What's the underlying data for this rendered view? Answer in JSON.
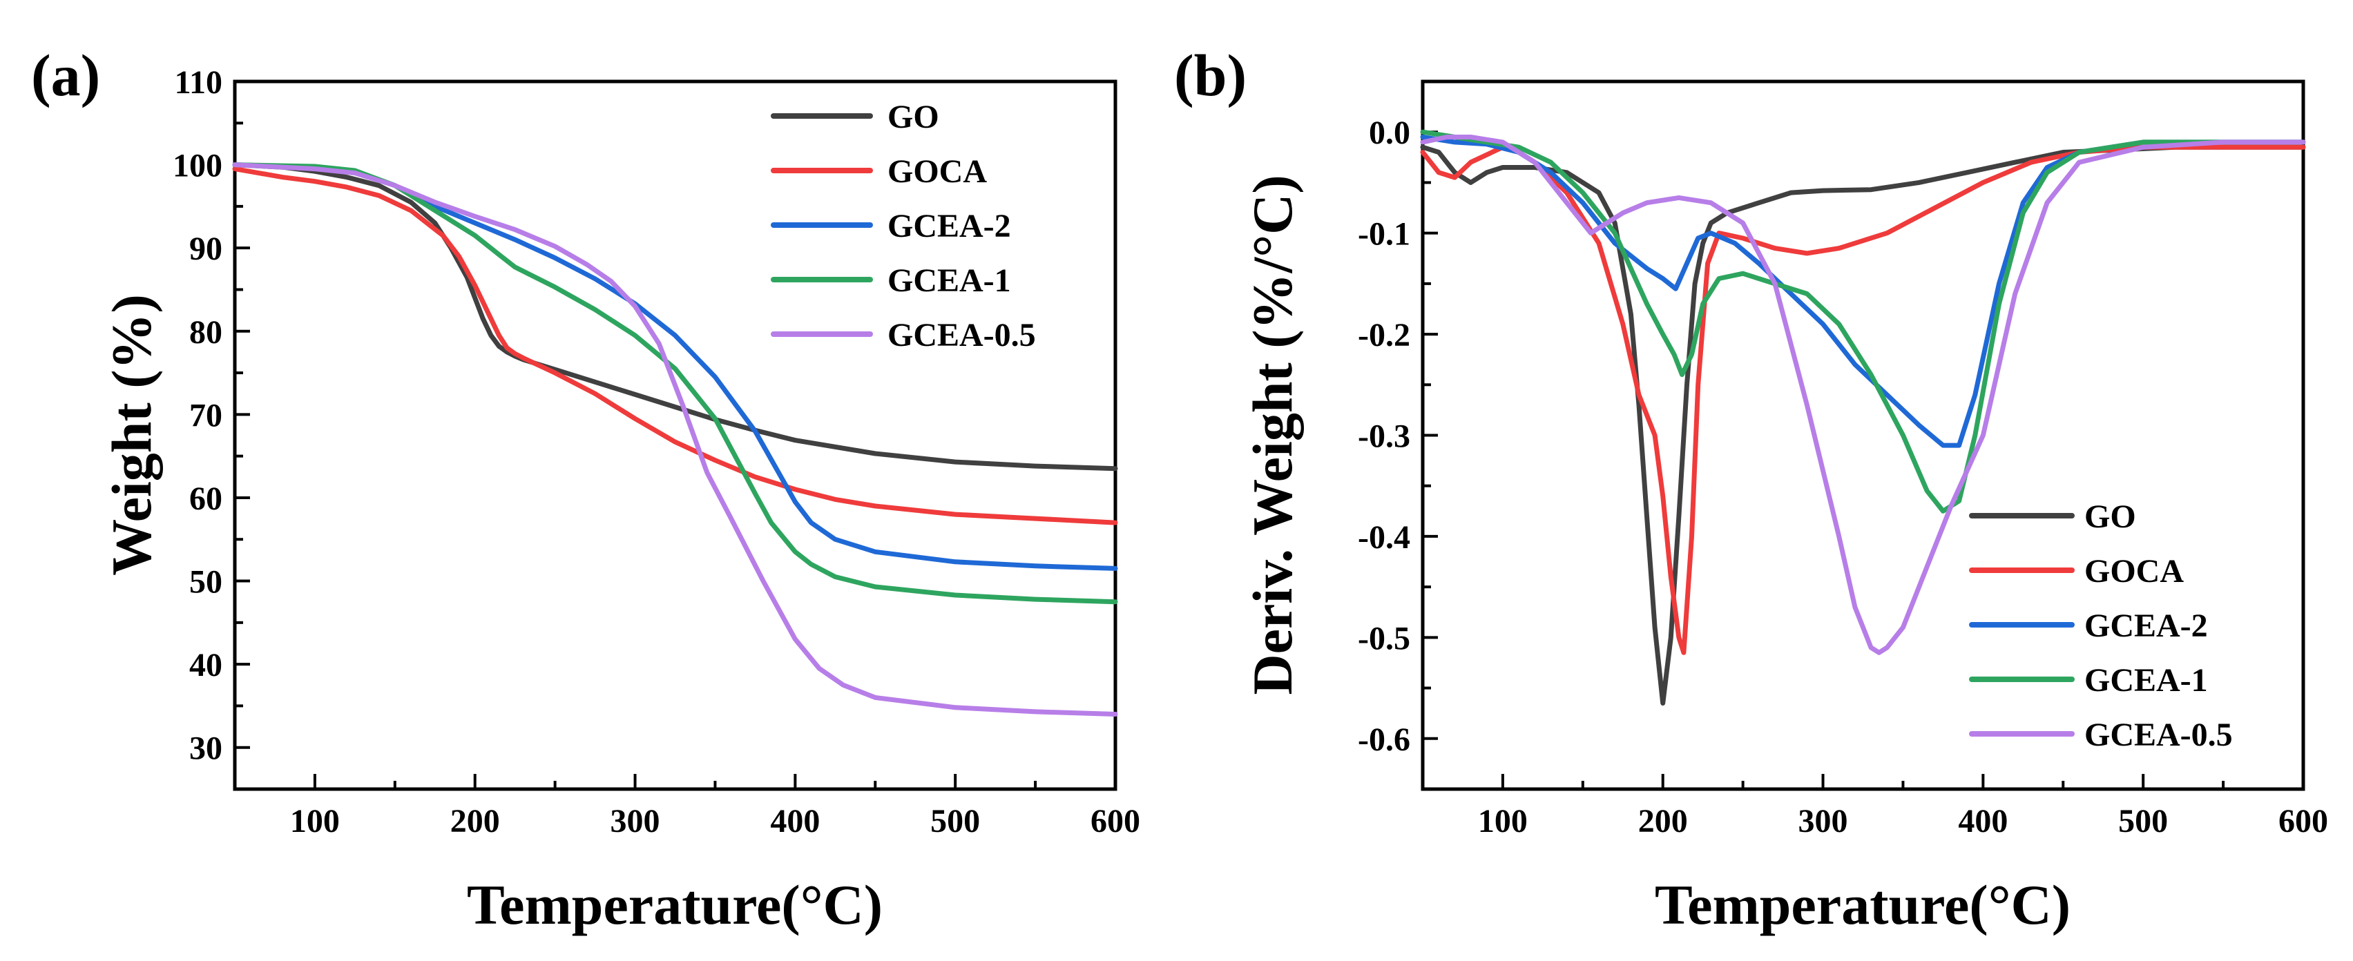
{
  "chart_data": [
    {
      "panel": "(a)",
      "type": "line",
      "xlabel": "Temperature(°C)",
      "ylabel": "Weight (%)",
      "xlim": [
        50,
        600
      ],
      "ylim": [
        25,
        110
      ],
      "xticks": [
        100,
        200,
        300,
        400,
        500,
        600
      ],
      "yticks": [
        30,
        40,
        50,
        60,
        70,
        80,
        90,
        100,
        110
      ],
      "legend_position": "top-right",
      "series": [
        {
          "name": "GO",
          "color": "#404040",
          "x": [
            50,
            80,
            100,
            120,
            140,
            160,
            175,
            185,
            195,
            200,
            205,
            210,
            215,
            220,
            225,
            230,
            250,
            275,
            300,
            325,
            350,
            375,
            400,
            450,
            500,
            550,
            600
          ],
          "y": [
            100,
            99.7,
            99.2,
            98.5,
            97.5,
            95.5,
            93,
            90,
            86.5,
            84,
            81.5,
            79.5,
            78.2,
            77.5,
            77,
            76.6,
            75.4,
            73.9,
            72.4,
            70.9,
            69.4,
            68.1,
            66.9,
            65.3,
            64.3,
            63.8,
            63.5
          ]
        },
        {
          "name": "GOCA",
          "color": "#ef3b3b",
          "x": [
            50,
            80,
            100,
            120,
            140,
            160,
            180,
            190,
            200,
            210,
            215,
            220,
            225,
            230,
            250,
            275,
            300,
            325,
            350,
            375,
            400,
            425,
            450,
            500,
            550,
            600
          ],
          "y": [
            99.5,
            98.5,
            98,
            97.3,
            96.3,
            94.5,
            91.5,
            89,
            85.5,
            81.5,
            79.5,
            78,
            77.3,
            76.8,
            75,
            72.5,
            69.5,
            66.7,
            64.5,
            62.5,
            61,
            59.8,
            59,
            58,
            57.5,
            57
          ]
        },
        {
          "name": "GCEA-2",
          "color": "#1f69d6",
          "x": [
            50,
            100,
            125,
            150,
            175,
            200,
            225,
            250,
            275,
            300,
            325,
            350,
            375,
            400,
            410,
            425,
            450,
            500,
            550,
            600
          ],
          "y": [
            100,
            99.7,
            99.2,
            97.5,
            95,
            93,
            91,
            88.8,
            86.3,
            83.3,
            79.5,
            74.5,
            68,
            59.5,
            57,
            55,
            53.5,
            52.3,
            51.8,
            51.5
          ]
        },
        {
          "name": "GCEA-1",
          "color": "#2ea55f",
          "x": [
            50,
            100,
            125,
            150,
            175,
            200,
            215,
            225,
            250,
            275,
            300,
            325,
            350,
            375,
            385,
            400,
            410,
            425,
            450,
            500,
            550,
            600
          ],
          "y": [
            100,
            99.8,
            99.3,
            97.5,
            94.5,
            91.5,
            89.2,
            87.7,
            85.3,
            82.6,
            79.5,
            75.5,
            69.5,
            60.5,
            57,
            53.5,
            52,
            50.5,
            49.3,
            48.3,
            47.8,
            47.5
          ]
        },
        {
          "name": "GCEA-0.5",
          "color": "#b77ee8",
          "x": [
            50,
            100,
            125,
            150,
            175,
            200,
            225,
            250,
            270,
            285,
            300,
            315,
            330,
            345,
            360,
            380,
            400,
            415,
            430,
            450,
            500,
            550,
            600
          ],
          "y": [
            100,
            99.5,
            99,
            97.5,
            95.5,
            93.8,
            92.2,
            90.2,
            88,
            86,
            83,
            78.5,
            71,
            63,
            57.5,
            50,
            43,
            39.5,
            37.5,
            36,
            34.8,
            34.3,
            34
          ]
        }
      ]
    },
    {
      "panel": "(b)",
      "type": "line",
      "xlabel": "Temperature(°C)",
      "ylabel": "Deriv. Weight (%/°C)",
      "xlim": [
        50,
        600
      ],
      "ylim": [
        -0.65,
        0.05
      ],
      "xticks": [
        100,
        200,
        300,
        400,
        500,
        600
      ],
      "yticks": [
        "0.0",
        "-0.1",
        "-0.2",
        "-0.3",
        "-0.4",
        "-0.5",
        "-0.6"
      ],
      "legend_position": "bottom-right",
      "series": [
        {
          "name": "GO",
          "color": "#404040",
          "x": [
            50,
            60,
            70,
            80,
            90,
            100,
            120,
            140,
            160,
            170,
            180,
            185,
            190,
            195,
            200,
            205,
            210,
            215,
            220,
            225,
            230,
            240,
            260,
            280,
            300,
            330,
            360,
            390,
            420,
            450,
            480,
            520,
            560,
            600
          ],
          "y": [
            -0.015,
            -0.02,
            -0.04,
            -0.05,
            -0.04,
            -0.035,
            -0.035,
            -0.04,
            -0.06,
            -0.09,
            -0.18,
            -0.27,
            -0.38,
            -0.49,
            -0.565,
            -0.5,
            -0.38,
            -0.25,
            -0.15,
            -0.11,
            -0.09,
            -0.08,
            -0.07,
            -0.06,
            -0.058,
            -0.057,
            -0.05,
            -0.04,
            -0.03,
            -0.02,
            -0.018,
            -0.015,
            -0.015,
            -0.015
          ]
        },
        {
          "name": "GOCA",
          "color": "#ef3b3b",
          "x": [
            50,
            60,
            70,
            80,
            100,
            110,
            120,
            140,
            160,
            175,
            185,
            195,
            200,
            205,
            210,
            213,
            218,
            222,
            228,
            235,
            250,
            270,
            290,
            310,
            340,
            370,
            400,
            430,
            460,
            500,
            550,
            600
          ],
          "y": [
            -0.02,
            -0.04,
            -0.045,
            -0.03,
            -0.015,
            -0.02,
            -0.03,
            -0.06,
            -0.11,
            -0.19,
            -0.26,
            -0.3,
            -0.36,
            -0.44,
            -0.5,
            -0.515,
            -0.4,
            -0.25,
            -0.13,
            -0.1,
            -0.105,
            -0.115,
            -0.12,
            -0.115,
            -0.1,
            -0.075,
            -0.05,
            -0.03,
            -0.02,
            -0.015,
            -0.015,
            -0.015
          ]
        },
        {
          "name": "GCEA-2",
          "color": "#1f69d6",
          "x": [
            50,
            70,
            90,
            110,
            130,
            150,
            170,
            190,
            200,
            208,
            215,
            222,
            230,
            245,
            260,
            280,
            300,
            320,
            340,
            360,
            375,
            385,
            395,
            410,
            425,
            440,
            460,
            500,
            550,
            600
          ],
          "y": [
            -0.005,
            -0.01,
            -0.012,
            -0.02,
            -0.04,
            -0.07,
            -0.11,
            -0.135,
            -0.145,
            -0.155,
            -0.13,
            -0.105,
            -0.1,
            -0.11,
            -0.13,
            -0.16,
            -0.19,
            -0.23,
            -0.26,
            -0.29,
            -0.31,
            -0.31,
            -0.26,
            -0.15,
            -0.07,
            -0.035,
            -0.02,
            -0.01,
            -0.01,
            -0.01
          ]
        },
        {
          "name": "GCEA-1",
          "color": "#2ea55f",
          "x": [
            50,
            70,
            90,
            110,
            130,
            150,
            170,
            190,
            200,
            207,
            212,
            218,
            225,
            235,
            250,
            270,
            290,
            310,
            330,
            350,
            365,
            375,
            385,
            395,
            410,
            425,
            440,
            460,
            500,
            550,
            600
          ],
          "y": [
            0,
            -0.005,
            -0.01,
            -0.015,
            -0.03,
            -0.06,
            -0.1,
            -0.17,
            -0.2,
            -0.22,
            -0.24,
            -0.22,
            -0.17,
            -0.145,
            -0.14,
            -0.15,
            -0.16,
            -0.19,
            -0.24,
            -0.3,
            -0.355,
            -0.375,
            -0.365,
            -0.3,
            -0.17,
            -0.08,
            -0.04,
            -0.02,
            -0.01,
            -0.01,
            -0.01
          ]
        },
        {
          "name": "GCEA-0.5",
          "color": "#b77ee8",
          "x": [
            50,
            65,
            80,
            100,
            120,
            140,
            155,
            165,
            175,
            190,
            210,
            230,
            250,
            270,
            290,
            310,
            320,
            330,
            335,
            340,
            350,
            365,
            380,
            400,
            420,
            440,
            460,
            500,
            550,
            600
          ],
          "y": [
            -0.01,
            -0.005,
            -0.005,
            -0.01,
            -0.03,
            -0.07,
            -0.1,
            -0.09,
            -0.08,
            -0.07,
            -0.065,
            -0.07,
            -0.09,
            -0.15,
            -0.27,
            -0.4,
            -0.47,
            -0.51,
            -0.515,
            -0.51,
            -0.49,
            -0.43,
            -0.37,
            -0.3,
            -0.16,
            -0.07,
            -0.03,
            -0.015,
            -0.01,
            -0.01
          ]
        }
      ]
    }
  ]
}
